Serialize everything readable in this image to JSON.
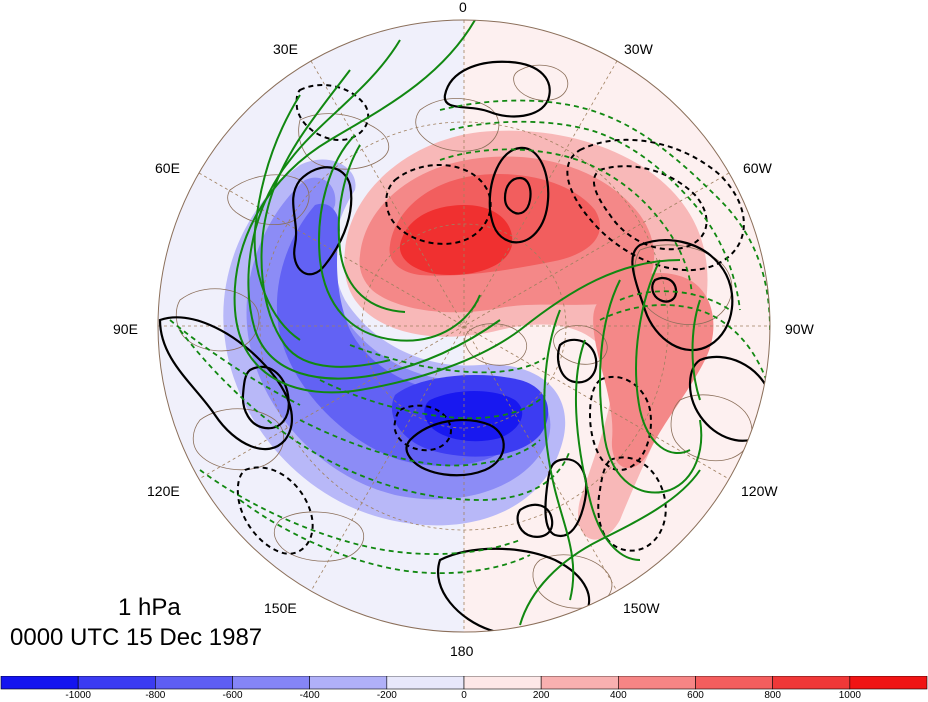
{
  "titles": {
    "level": "1 hPa",
    "datetime": "0000 UTC 15 Dec 1987"
  },
  "longitude_labels": {
    "lon_0": "0",
    "lon_30w": "30W",
    "lon_60w": "60W",
    "lon_90w": "90W",
    "lon_120w": "120W",
    "lon_150w": "150W",
    "lon_180": "180",
    "lon_150e": "150E",
    "lon_120e": "120E",
    "lon_90e": "90E",
    "lon_60e": "60E",
    "lon_30e": "30E"
  },
  "colorbar": {
    "tick_labels": [
      "-1000",
      "-800",
      "-600",
      "-400",
      "-200",
      "0",
      "200",
      "400",
      "600",
      "800",
      "1000"
    ],
    "colors": [
      "#1414f0",
      "#3b3bf2",
      "#5e5ef4",
      "#8585f6",
      "#b0b0f8",
      "#e8e8fb",
      "#fde8e8",
      "#f8b0b0",
      "#f68585",
      "#f45e5e",
      "#f03838",
      "#f01414"
    ]
  },
  "colors": {
    "contour_positive": "#000000",
    "contour_green": "#118811",
    "coastline": "#8b6f5a",
    "graticule": "#a08060"
  }
}
